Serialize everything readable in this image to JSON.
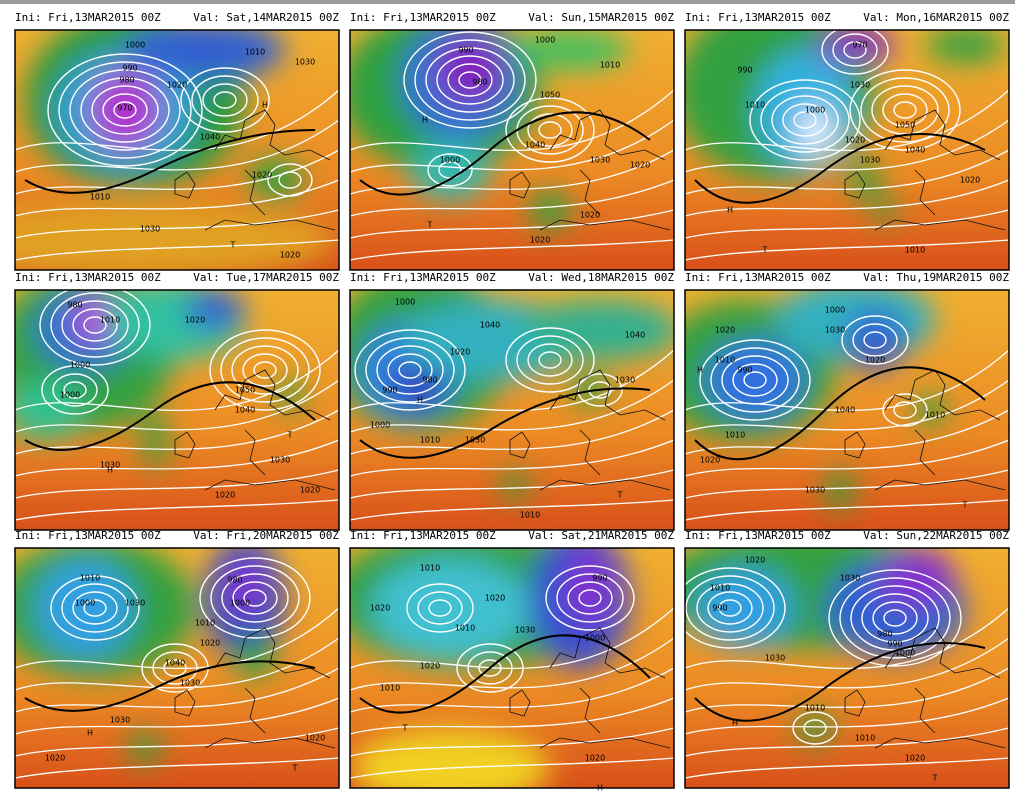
{
  "panels": [
    {
      "ini": "Ini: Fri,13MAR2015 00Z",
      "val": "Val: Sat,14MAR2015 00Z",
      "labels": [
        "970",
        "980",
        "990",
        "1000",
        "1010",
        "1020",
        "1030",
        "1040",
        "1020",
        "1010",
        "1030",
        "1020",
        "H",
        "T"
      ]
    },
    {
      "ini": "Ini: Fri,13MAR2015 00Z",
      "val": "Val: Sun,15MAR2015 00Z",
      "labels": [
        "990",
        "980",
        "1000",
        "1010",
        "1050",
        "1040",
        "1030",
        "1020",
        "1000",
        "1020",
        "1020",
        "H",
        "T"
      ]
    },
    {
      "ini": "Ini: Fri,13MAR2015 00Z",
      "val": "Val: Mon,16MAR2015 00Z",
      "labels": [
        "970",
        "990",
        "1010",
        "1000",
        "1020",
        "1030",
        "1050",
        "1040",
        "1030",
        "1020",
        "1010",
        "H",
        "T"
      ]
    },
    {
      "ini": "Ini: Fri,13MAR2015 00Z",
      "val": "Val: Tue,17MAR2015 00Z",
      "labels": [
        "980",
        "1010",
        "1000",
        "1020",
        "1050",
        "1040",
        "1030",
        "1020",
        "1030",
        "1020",
        "1000",
        "H",
        "T"
      ]
    },
    {
      "ini": "Ini: Fri,13MAR2015 00Z",
      "val": "Val: Wed,18MAR2015 00Z",
      "labels": [
        "1000",
        "990",
        "980",
        "1040",
        "1020",
        "1040",
        "1030",
        "1010",
        "1030",
        "1010",
        "1000",
        "H",
        "T"
      ]
    },
    {
      "ini": "Ini: Fri,13MAR2015 00Z",
      "val": "Val: Thu,19MAR2015 00Z",
      "labels": [
        "1020",
        "1010",
        "990",
        "1000",
        "1030",
        "1020",
        "1040",
        "1010",
        "1020",
        "1030",
        "1010",
        "H",
        "T"
      ]
    },
    {
      "ini": "Ini: Fri,13MAR2015 00Z",
      "val": "Val: Fri,20MAR2015 00Z",
      "labels": [
        "1010",
        "1000",
        "1030",
        "980",
        "1000",
        "1010",
        "1020",
        "1040",
        "1030",
        "1020",
        "1030",
        "1020",
        "H",
        "T"
      ]
    },
    {
      "ini": "Ini: Fri,13MAR2015 00Z",
      "val": "Val: Sat,21MAR2015 00Z",
      "labels": [
        "1010",
        "1020",
        "1020",
        "990",
        "1000",
        "1010",
        "1030",
        "1020",
        "1020",
        "1010",
        "H",
        "T"
      ]
    },
    {
      "ini": "Ini: Fri,13MAR2015 00Z",
      "val": "Val: Sun,22MAR2015 00Z",
      "labels": [
        "1020",
        "1010",
        "990",
        "1030",
        "980",
        "990",
        "1000",
        "1030",
        "1010",
        "1010",
        "1020",
        "H",
        "T"
      ]
    }
  ]
}
